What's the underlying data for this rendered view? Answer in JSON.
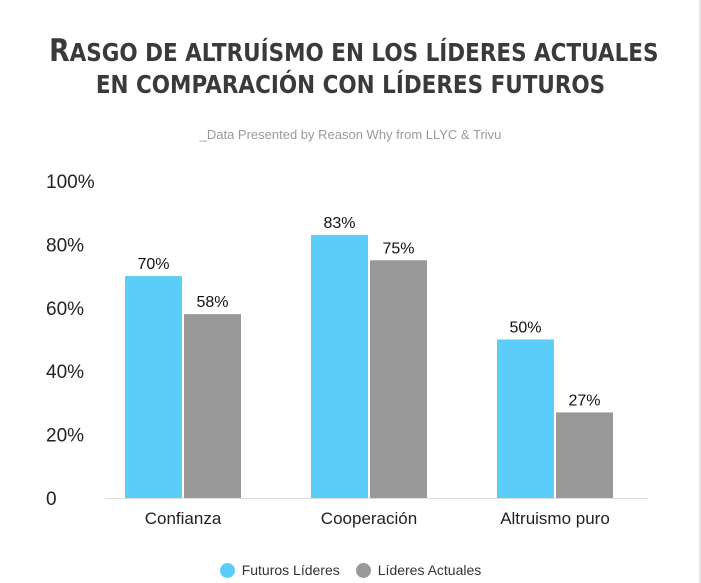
{
  "title": {
    "line1_first": "R",
    "line1_rest": "asgo de altruísmo en los líderes actuales",
    "line2": "en comparación con líderes futuros"
  },
  "subtitle": "_Data Presented by Reason Why from LLYC & Trivu",
  "chart_data": {
    "type": "bar",
    "title": "Rasgo de altruísmo en los líderes actuales en comparación con líderes futuros",
    "categories": [
      "Confianza",
      "Cooperación",
      "Altruismo puro"
    ],
    "series": [
      {
        "name": "Futuros Líderes",
        "values": [
          70,
          83,
          50
        ],
        "labels": [
          "70%",
          "83%",
          "50%"
        ],
        "color": "#5bcdf8"
      },
      {
        "name": "Líderes Actuales",
        "values": [
          58,
          75,
          27
        ],
        "labels": [
          "58%",
          "75%",
          "27%"
        ],
        "color": "#999999"
      }
    ],
    "ylim": [
      0,
      100
    ],
    "yticks": [
      0,
      20,
      40,
      60,
      80,
      100
    ],
    "ytick_labels": [
      "0",
      "20%",
      "40%",
      "60%",
      "80%",
      "100%"
    ],
    "xlabel": "",
    "ylabel": "",
    "grid": false,
    "legend_position": "bottom-center"
  },
  "legend": [
    {
      "label": "Futuros Líderes",
      "color": "#5bcdf8"
    },
    {
      "label": "Líderes Actuales",
      "color": "#999999"
    }
  ]
}
